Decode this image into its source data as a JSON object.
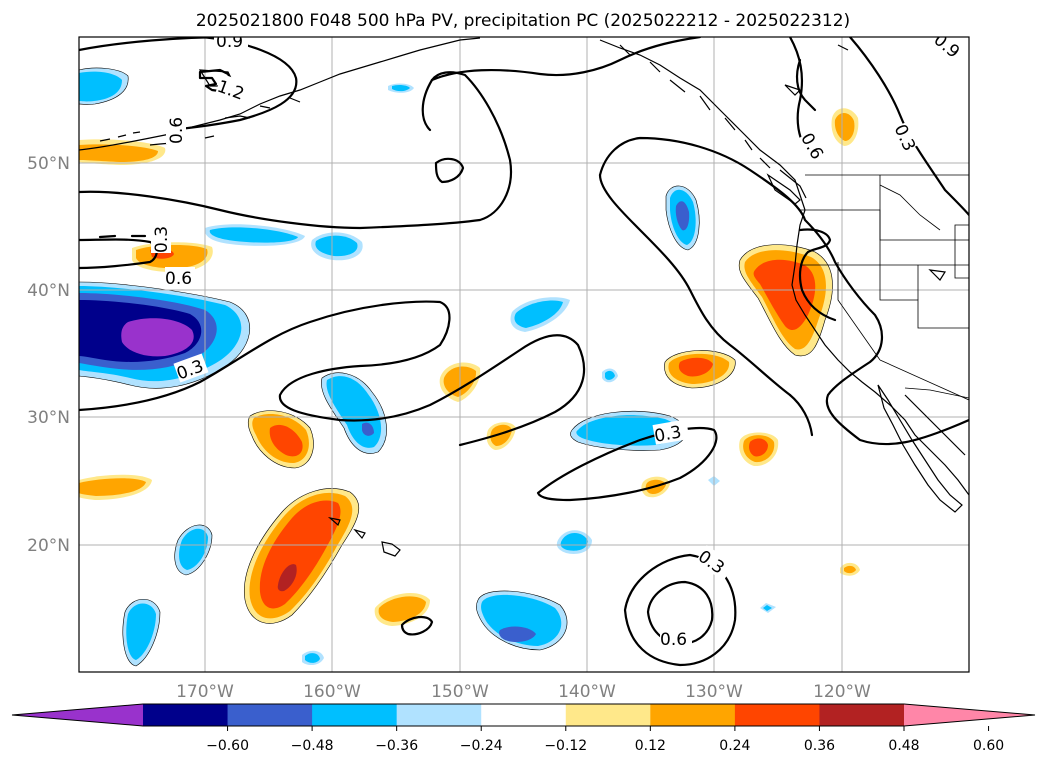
{
  "title": "2025021800 F048 500 hPa PV, precipitation PC (2025022212 - 2025022312)",
  "map": {
    "lon_labels": [
      "170°W",
      "160°W",
      "150°W",
      "140°W",
      "130°W",
      "120°W"
    ],
    "lat_labels": [
      "50°N",
      "40°N",
      "30°N",
      "20°N"
    ],
    "gridlines": true,
    "contour_labels": [
      "0.9",
      "1.2",
      "0.9",
      "0.6",
      "0.3",
      "0.6",
      "0.3",
      "0.3",
      "0.3",
      "0.6",
      "0.6",
      "0.3"
    ]
  },
  "colorbar": {
    "tick_labels": [
      "−0.60",
      "−0.48",
      "−0.36",
      "−0.24",
      "−0.12",
      "0.12",
      "0.24",
      "0.36",
      "0.48",
      "0.60"
    ],
    "colors": [
      "#9932cc",
      "#00008b",
      "#3a5fcd",
      "#00bfff",
      "#b0e2ff",
      "#ffffff",
      "#ffe88a",
      "#ffa500",
      "#ff4500",
      "#b22222",
      "#ff86a8"
    ],
    "extend": "both"
  }
}
